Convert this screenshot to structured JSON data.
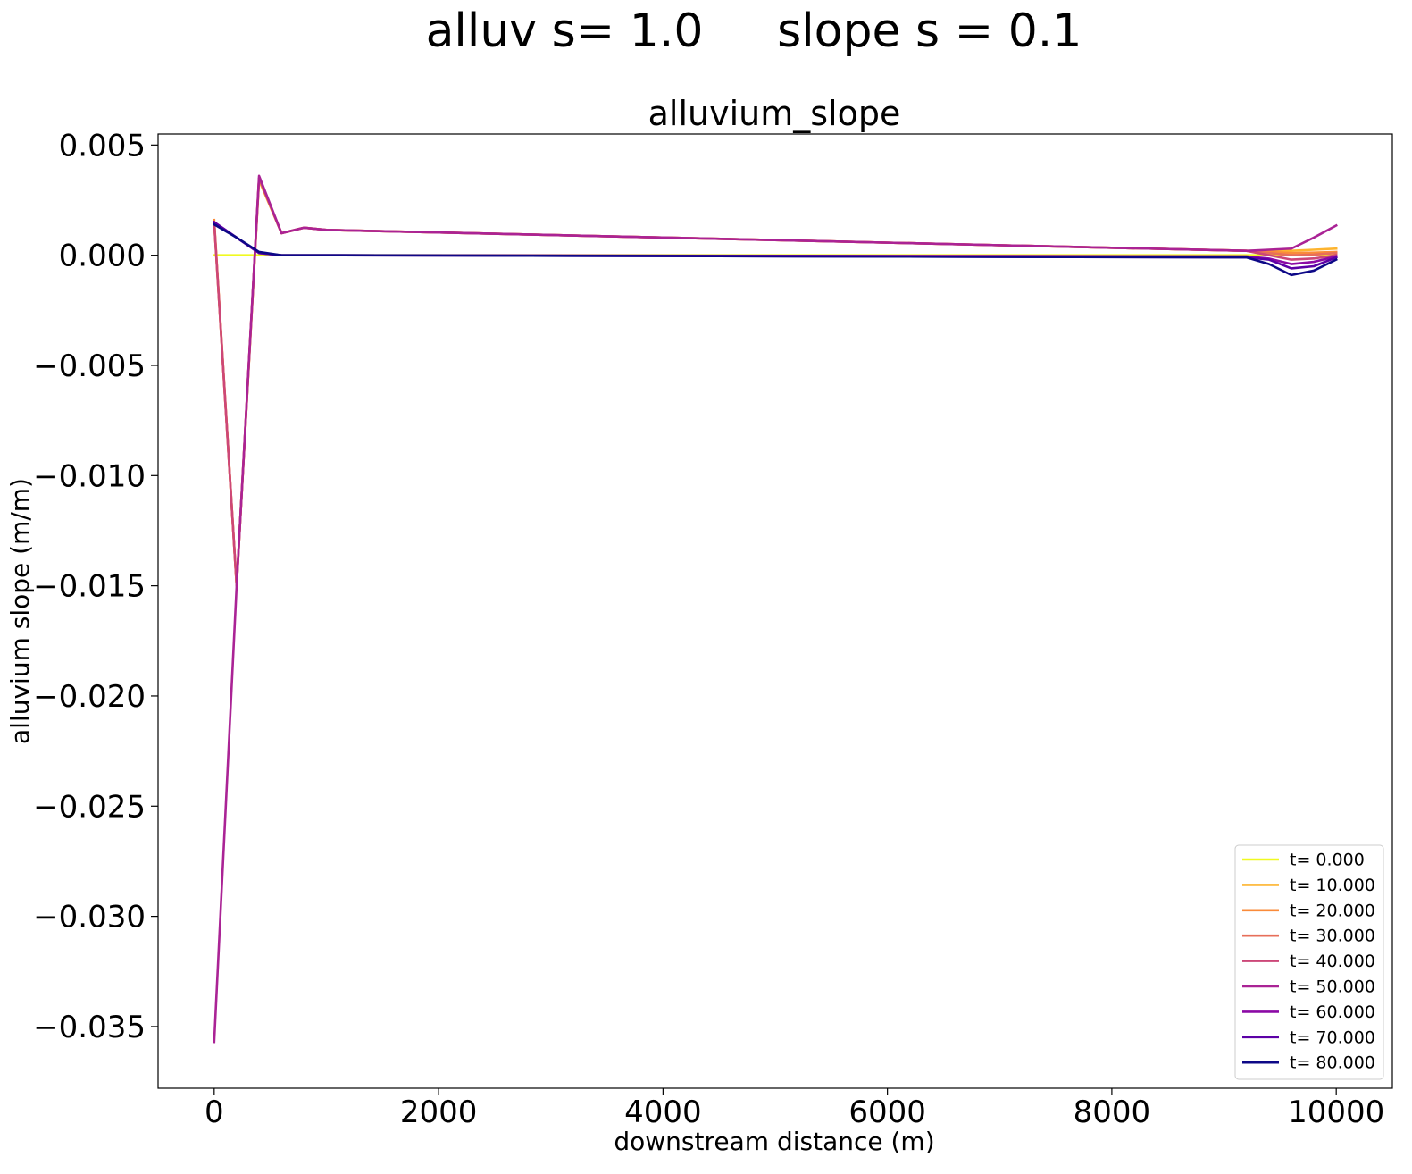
{
  "figure": {
    "suptitle": "alluv s= 1.0     slope s = 0.1"
  },
  "chart_data": {
    "type": "line",
    "title": "alluvium_slope",
    "xlabel": "downstream distance (m)",
    "ylabel": "alluvium slope (m/m)",
    "xlim": [
      -500,
      10500
    ],
    "ylim": [
      -0.0378,
      0.0055
    ],
    "xticks": [
      0,
      2000,
      4000,
      6000,
      8000,
      10000
    ],
    "xtick_labels": [
      "0",
      "2000",
      "4000",
      "6000",
      "8000",
      "10000"
    ],
    "yticks": [
      0.005,
      0.0,
      -0.005,
      -0.01,
      -0.015,
      -0.02,
      -0.025,
      -0.03,
      -0.035
    ],
    "ytick_labels": [
      "0.005",
      "0.000",
      "−0.005",
      "−0.010",
      "−0.015",
      "−0.020",
      "−0.025",
      "−0.030",
      "−0.035"
    ],
    "grid": false,
    "legend_position": "lower-right",
    "x": [
      0,
      200,
      400,
      600,
      800,
      1000,
      9200,
      9400,
      9600,
      9800,
      10000
    ],
    "series": [
      {
        "name": "t= 0.000",
        "color": "#f0f921",
        "values": [
          0,
          0,
          0,
          0,
          0,
          0,
          0,
          0,
          0,
          0,
          0
        ]
      },
      {
        "name": "t= 10.000",
        "color": "#fdb42f",
        "values": [
          0.0015,
          -0.015,
          0.0034,
          0.001,
          0.00125,
          0.00115,
          0.0002,
          0.0002,
          0.0002,
          0.00025,
          0.0003
        ]
      },
      {
        "name": "t= 20.000",
        "color": "#fa8b3a",
        "values": [
          0.0016,
          -0.015,
          0.0035,
          0.001,
          0.00125,
          0.00115,
          0.0002,
          0.00015,
          0.0001,
          0.00012,
          0.00015
        ]
      },
      {
        "name": "t= 30.000",
        "color": "#e76f5a",
        "values": [
          0.0015,
          -0.015,
          0.0035,
          0.001,
          0.00125,
          0.00115,
          0.0002,
          0.0001,
          0.0,
          3e-05,
          0.0001
        ]
      },
      {
        "name": "t= 40.000",
        "color": "#cc4778",
        "values": [
          0.0015,
          -0.015,
          0.0035,
          0.001,
          0.00125,
          0.00115,
          0.0002,
          0.0,
          -0.0002,
          -0.00015,
          0.0
        ]
      },
      {
        "name": "t= 50.000",
        "color": "#aa2395",
        "values": [
          -0.0357,
          -0.015,
          0.0036,
          0.001,
          0.00125,
          0.00115,
          0.0002,
          0.00025,
          0.0003,
          0.0008,
          0.00135
        ]
      },
      {
        "name": "t= 60.000",
        "color": "#8b0aa5",
        "values": [
          0.0015,
          0.0008,
          0.0001,
          0.0,
          0.0,
          0.0,
          -5e-05,
          -0.00015,
          -0.0004,
          -0.0003,
          -5e-05
        ]
      },
      {
        "name": "t= 70.000",
        "color": "#5c01a6",
        "values": [
          0.0015,
          0.0008,
          0.0001,
          0.0,
          0.0,
          0.0,
          -0.0001,
          -0.0002,
          -0.0006,
          -0.0005,
          -0.0001
        ]
      },
      {
        "name": "t= 80.000",
        "color": "#0d0887",
        "values": [
          0.0014,
          0.0008,
          0.00015,
          0.0,
          0.0,
          0.0,
          -0.0001,
          -0.0004,
          -0.0009,
          -0.0007,
          -0.0002
        ]
      }
    ]
  }
}
